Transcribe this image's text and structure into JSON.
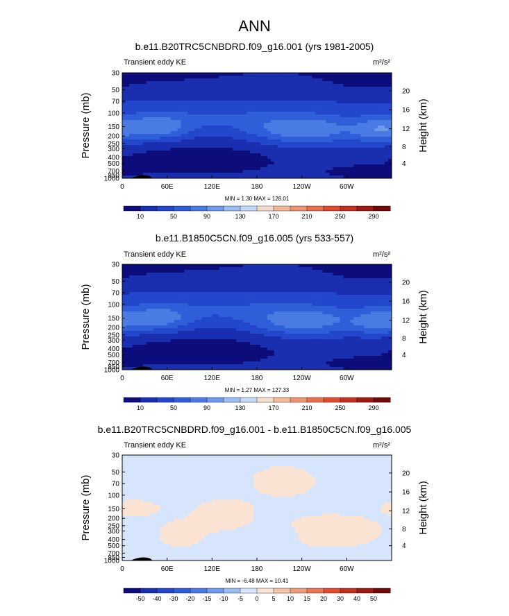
{
  "figure_title": "ANN",
  "chart_data": [
    {
      "type": "heatmap",
      "title": "b.e11.B20TRC5CNBDRD.f09_g16.001 (yrs 1981-2005)",
      "left_label": "Transient eddy KE",
      "units": "m²/s²",
      "ylabel": "Pressure (mb)",
      "y2label": "Height (km)",
      "xticks": [
        "0",
        "60E",
        "120E",
        "180",
        "120W",
        "60W"
      ],
      "yticks": [
        "30",
        "50",
        "70",
        "100",
        "150",
        "200",
        "250",
        "300",
        "400",
        "500",
        "700",
        "850",
        "1000"
      ],
      "y2ticks": [
        "20",
        "16",
        "12",
        "8",
        "4"
      ],
      "stats": "MIN =   1.30  MAX = 128.01",
      "min": 1.3,
      "max": 128.01,
      "colorbar_labels": [
        "10",
        "50",
        "90",
        "130",
        "170",
        "210",
        "250",
        "290"
      ],
      "colorbar_levels": [
        0,
        10,
        30,
        50,
        70,
        90,
        110,
        130,
        150,
        170,
        190,
        210,
        230,
        250,
        270,
        290,
        310
      ]
    },
    {
      "type": "heatmap",
      "title": "b.e11.B1850C5CN.f09_g16.005 (yrs 533-557)",
      "left_label": "Transient eddy KE",
      "units": "m²/s²",
      "ylabel": "Pressure (mb)",
      "y2label": "Height (km)",
      "xticks": [
        "0",
        "60E",
        "120E",
        "180",
        "120W",
        "60W"
      ],
      "yticks": [
        "30",
        "50",
        "70",
        "100",
        "150",
        "200",
        "250",
        "300",
        "400",
        "500",
        "700",
        "850",
        "1000"
      ],
      "y2ticks": [
        "20",
        "16",
        "12",
        "8",
        "4"
      ],
      "stats": "MIN =   1.27  MAX = 127.33",
      "min": 1.27,
      "max": 127.33,
      "colorbar_labels": [
        "10",
        "50",
        "90",
        "130",
        "170",
        "210",
        "250",
        "290"
      ],
      "colorbar_levels": [
        0,
        10,
        30,
        50,
        70,
        90,
        110,
        130,
        150,
        170,
        190,
        210,
        230,
        250,
        270,
        290,
        310
      ]
    },
    {
      "type": "heatmap",
      "title": "b.e11.B20TRC5CNBDRD.f09_g16.001 - b.e11.B1850C5CN.f09_g16.005",
      "left_label": "Transient eddy KE",
      "units": "m²/s²",
      "ylabel": "Pressure (mb)",
      "y2label": "Height (km)",
      "xticks": [
        "0",
        "60E",
        "120E",
        "180",
        "120W",
        "60W"
      ],
      "yticks": [
        "30",
        "50",
        "70",
        "100",
        "150",
        "200",
        "250",
        "300",
        "400",
        "500",
        "700",
        "850",
        "1000"
      ],
      "y2ticks": [
        "20",
        "16",
        "12",
        "8",
        "4"
      ],
      "stats": "MIN =  -6.48  MAX =  10.41",
      "min": -6.48,
      "max": 10.41,
      "colorbar_labels": [
        "-50",
        "-40",
        "-30",
        "-20",
        "-15",
        "-10",
        "-5",
        "0",
        "5",
        "10",
        "15",
        "20",
        "30",
        "40",
        "50"
      ],
      "colorbar_levels": [
        -60,
        -50,
        -40,
        -30,
        -20,
        -15,
        -10,
        -5,
        0,
        5,
        10,
        15,
        20,
        30,
        40,
        50,
        60
      ]
    }
  ],
  "colors": {
    "seq": [
      "#0c0c7a",
      "#1a2fb0",
      "#2347cc",
      "#2f5ed9",
      "#4a7be3",
      "#6f9aec",
      "#9cbcf4",
      "#c4d8f8",
      "#f6ddc9",
      "#f3b99a",
      "#ee9470",
      "#e8704e",
      "#e04b2f",
      "#c3301e",
      "#9a1c12",
      "#6e0a07"
    ],
    "diff": [
      "#0c0c7a",
      "#1a2fb0",
      "#2347cc",
      "#2f5ed9",
      "#4a7be3",
      "#6f9aec",
      "#9cbcf4",
      "#d6e5fb",
      "#fbe3d4",
      "#f5c4a8",
      "#ee9e7d",
      "#e87757",
      "#e04d33",
      "#c3301e",
      "#9a1c12",
      "#6e0a07"
    ]
  }
}
